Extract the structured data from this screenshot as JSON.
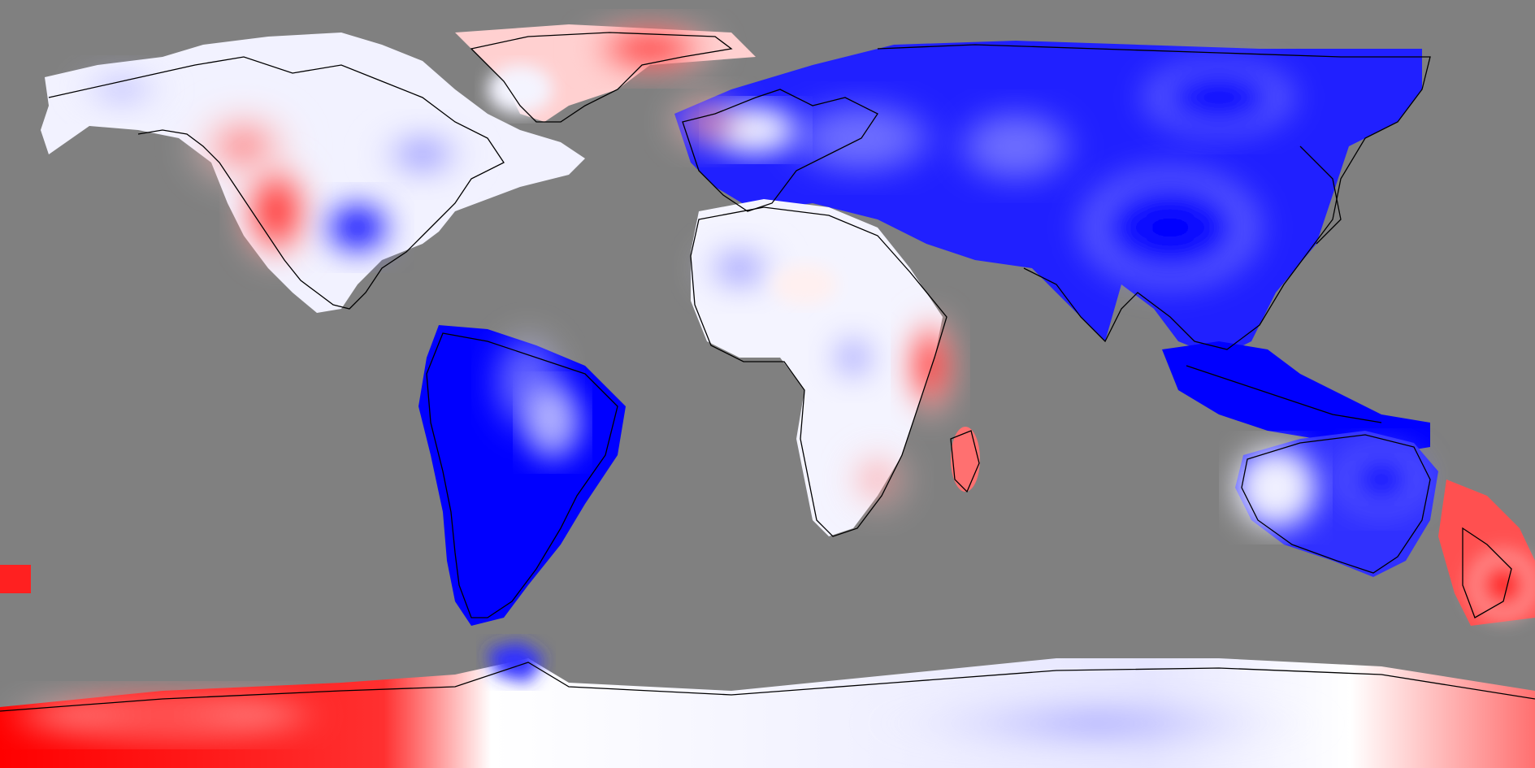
{
  "map": {
    "projection": "equirectangular",
    "background_color": "#808080",
    "coastline_color": "#000000",
    "color_scale": {
      "negative": "#0000ff",
      "neutral": "#ffffff",
      "positive": "#ff0000"
    },
    "regions": [
      {
        "name": "greenland",
        "anomaly": "positive"
      },
      {
        "name": "western-north-america",
        "anomaly": "positive"
      },
      {
        "name": "gulf-of-mexico",
        "anomaly": "negative"
      },
      {
        "name": "south-america",
        "anomaly": "strong-negative"
      },
      {
        "name": "europe-asia",
        "anomaly": "strong-negative"
      },
      {
        "name": "east-africa",
        "anomaly": "strong-positive"
      },
      {
        "name": "southern-africa",
        "anomaly": "positive"
      },
      {
        "name": "madagascar",
        "anomaly": "positive"
      },
      {
        "name": "southeast-asia-indonesia",
        "anomaly": "strong-negative"
      },
      {
        "name": "australia",
        "anomaly": "negative"
      },
      {
        "name": "new-zealand",
        "anomaly": "strong-positive"
      },
      {
        "name": "antarctica-west",
        "anomaly": "strong-positive"
      },
      {
        "name": "antarctica-east",
        "anomaly": "weak-negative"
      }
    ]
  }
}
